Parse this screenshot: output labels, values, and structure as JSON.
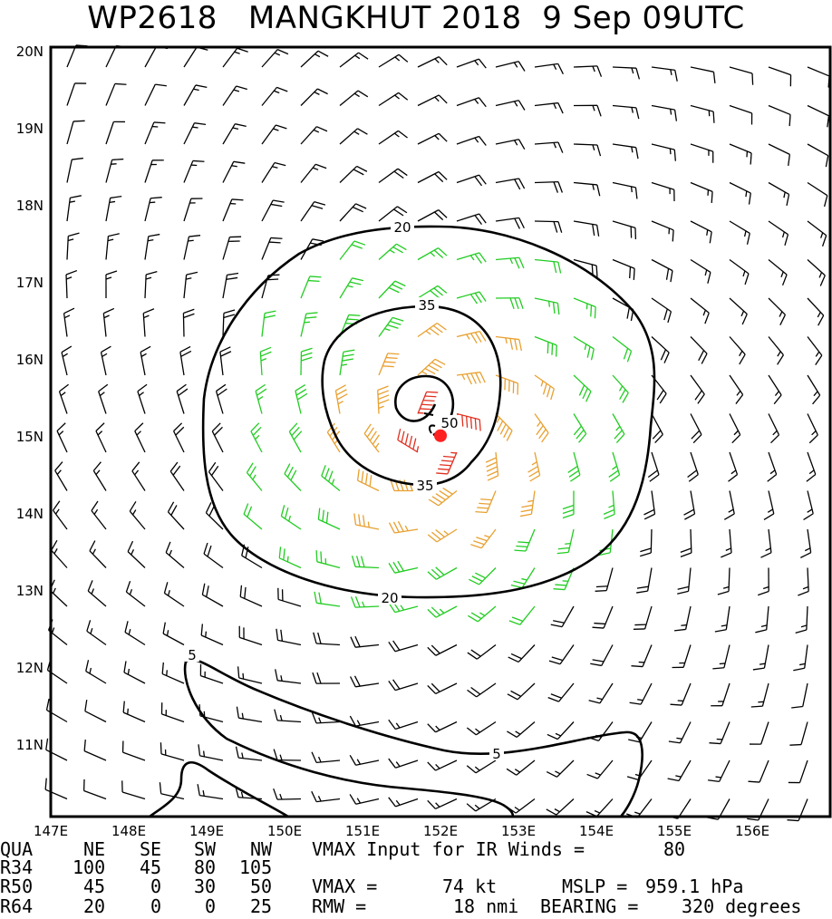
{
  "title": {
    "storm_id": "WP2618",
    "storm_name": "MANGKHUT 2018",
    "datetime": "9 Sep 09UTC"
  },
  "map": {
    "lat_labels": [
      "20N",
      "19N",
      "18N",
      "17N",
      "16N",
      "15N",
      "14N",
      "13N",
      "12N",
      "11N"
    ],
    "lon_labels": [
      "147E",
      "148E",
      "149E",
      "150E",
      "151E",
      "152E",
      "153E",
      "154E",
      "155E",
      "156E"
    ],
    "lat_range": [
      10.1,
      20.1
    ],
    "lon_range": [
      147.0,
      157.0
    ],
    "storm_center": {
      "lon": 152.0,
      "lat": 15.05
    },
    "contour_labels": [
      "20",
      "35",
      "50",
      "5"
    ],
    "colors": {
      "calm": "#000000",
      "r34": "#22cc22",
      "r50": "#e8a030",
      "r64": "#e03020",
      "center": "#ff2020"
    }
  },
  "footer": {
    "row1": {
      "qua": "QUA",
      "ne": "NE",
      "se": "SE",
      "sw": "SW",
      "nw": "NW",
      "label": "VMAX Input for IR Winds =",
      "value": "80"
    },
    "row2": {
      "name": "R34",
      "ne": "100",
      "se": "45",
      "sw": "80",
      "nw": "105"
    },
    "row3": {
      "name": "R50",
      "ne": "45",
      "se": "0",
      "sw": "30",
      "nw": "50",
      "vmax_label": "VMAX =",
      "vmax": "74 kt",
      "mslp_label": "MSLP =",
      "mslp": "959.1 hPa"
    },
    "row4": {
      "name": "R64",
      "ne": "20",
      "se": "0",
      "sw": "0",
      "nw": "25",
      "rmw_label": "RMW =",
      "rmw": "18 nmi",
      "bearing_label": "BEARING =",
      "bearing": "320 degrees"
    }
  }
}
